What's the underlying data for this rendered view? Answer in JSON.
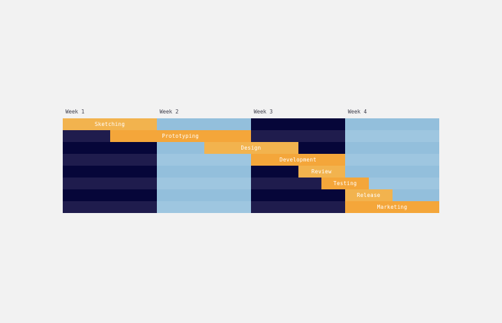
{
  "weeks": [
    "Week 1",
    "Week 2",
    "Week 3",
    "Week 4"
  ],
  "tasks": [
    {
      "label": "Sketching",
      "start_day": 0,
      "end_day": 7
    },
    {
      "label": "Prototyping",
      "start_day": 3.5,
      "end_day": 14
    },
    {
      "label": "Design",
      "start_day": 10.5,
      "end_day": 17.5
    },
    {
      "label": "Development",
      "start_day": 14,
      "end_day": 21
    },
    {
      "label": "Review",
      "start_day": 17.5,
      "end_day": 21
    },
    {
      "label": "Testing",
      "start_day": 19.25,
      "end_day": 22.75
    },
    {
      "label": "Release",
      "start_day": 21,
      "end_day": 24.5
    },
    {
      "label": "Marketing",
      "start_day": 21,
      "end_day": 28
    }
  ],
  "colors": {
    "dark_row_a": "#060639",
    "dark_row_b": "#1f1c4d",
    "light_row_a": "#93bfdc",
    "light_row_b": "#9ec6e0",
    "task_light": "#f2b34e",
    "task_deep": "#f4a63a",
    "background": "#f2f2f2"
  }
}
